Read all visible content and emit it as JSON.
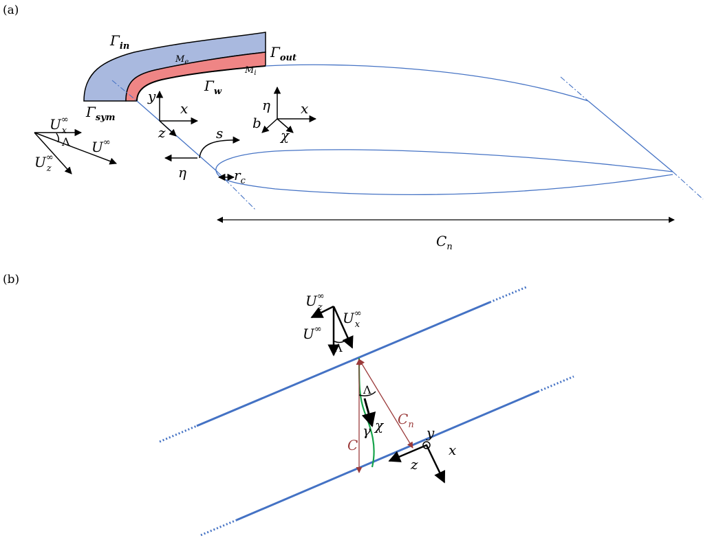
{
  "panels": {
    "a": "(a)",
    "b": "(b)"
  },
  "colors": {
    "outer_mesh": "#a9b9df",
    "inner_mesh": "#ef8585",
    "airfoil": "#4472c4",
    "chord_red": "#9b3b3b",
    "streamline_green": "#16a34a"
  },
  "panel_a": {
    "gamma": "Γ",
    "gamma_in_sub": "in",
    "gamma_out_sub": "out",
    "gamma_w_sub": "w",
    "gamma_sym_sub": "sym",
    "M": "M",
    "Me_sub": "e",
    "Mi_sub": "i",
    "U": "U",
    "inf": "∞",
    "x_sub": "x",
    "z_sub": "z",
    "lambda": "Λ",
    "y": "y",
    "x": "x",
    "z": "z",
    "s": "s",
    "eta": "η",
    "b": "b",
    "chi": "χ",
    "r": "r",
    "rc_sub": "c",
    "C": "C",
    "Cn_sub": "n"
  },
  "panel_b": {
    "U": "U",
    "inf": "∞",
    "z_sub": "z",
    "x_sub": "x",
    "lambda": "Λ",
    "C": "C",
    "Cn_sub": "n",
    "chi": "χ",
    "gamma_small": "γ",
    "y": "y",
    "x": "x",
    "z": "z"
  }
}
